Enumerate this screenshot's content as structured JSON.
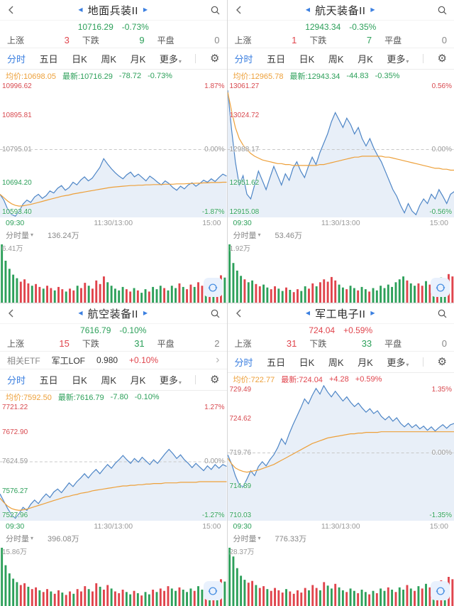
{
  "colors": {
    "up": "#e0444c",
    "down": "#2da05a",
    "line": "#4d85c6",
    "avg": "#eda03a",
    "fill": "rgba(77,133,198,0.13)",
    "accent": "#3b7fe0"
  },
  "icons": {
    "prev_stock": "◀",
    "next_stock": "▶",
    "settings_gear": "⚙",
    "caret_down": "▾",
    "chevron_right": "›"
  },
  "panels": [
    {
      "title": "地面兵装II",
      "price": "10716.29",
      "change_pct": "-0.73%",
      "direction": "down",
      "stats": {
        "up_label": "上涨",
        "up": "3",
        "down_label": "下跌",
        "down": "9",
        "flat_label": "平盘",
        "flat": "0"
      },
      "tabs": [
        "分时",
        "五日",
        "日K",
        "周K",
        "月K",
        "更多"
      ],
      "info": {
        "avg_label": "均价:",
        "avg": "10698.05",
        "last_label": "最新:",
        "last": "10716.29",
        "chg": "-78.72",
        "chg_pct": "-0.73%"
      },
      "y_labels": [
        "10996.62",
        "10895.81",
        "10795.01",
        "10694.20",
        "10593.40"
      ],
      "pct_labels": [
        "1.87%",
        "0.00%",
        "-1.87%"
      ],
      "time_labels": [
        "09:30",
        "11:30/13:00",
        "15:00"
      ],
      "vol_label": "分时量",
      "vol_value": "136.24万",
      "vol_max_label": "6.41万",
      "chart": {
        "type": "line",
        "min": 10593.4,
        "max": 10996.62,
        "series": [
          10662,
          10645,
          10618,
          10602,
          10597,
          10612,
          10633,
          10645,
          10638,
          10654,
          10662,
          10650,
          10658,
          10672,
          10666,
          10680,
          10688,
          10674,
          10682,
          10698,
          10690,
          10704,
          10714,
          10702,
          10710,
          10726,
          10742,
          10768,
          10752,
          10738,
          10726,
          10716,
          10708,
          10720,
          10728,
          10714,
          10722,
          10712,
          10702,
          10716,
          10708,
          10698,
          10690,
          10702,
          10694,
          10682,
          10674,
          10686,
          10678,
          10690,
          10696,
          10686,
          10694,
          10704,
          10698,
          10708,
          10700,
          10712,
          10722,
          10716
        ],
        "avg": [
          10662,
          10652,
          10642,
          10634,
          10629,
          10627,
          10628,
          10630,
          10632,
          10635,
          10638,
          10641,
          10644,
          10647,
          10650,
          10653,
          10656,
          10658,
          10660,
          10663,
          10665,
          10667,
          10669,
          10671,
          10673,
          10675,
          10677,
          10679,
          10681,
          10683,
          10684,
          10685,
          10686,
          10687,
          10688,
          10688,
          10689,
          10689,
          10690,
          10690,
          10691,
          10691,
          10691,
          10692,
          10692,
          10692,
          10693,
          10693,
          10693,
          10694,
          10694,
          10695,
          10695,
          10696,
          10696,
          10697,
          10697,
          10697,
          10698,
          10698
        ],
        "vol": [
          1.0,
          0.72,
          0.58,
          0.48,
          0.42,
          0.36,
          0.4,
          0.33,
          0.29,
          0.32,
          0.27,
          0.24,
          0.29,
          0.25,
          0.21,
          0.27,
          0.23,
          0.19,
          0.24,
          0.21,
          0.29,
          0.25,
          0.34,
          0.29,
          0.24,
          0.38,
          0.32,
          0.45,
          0.35,
          0.29,
          0.24,
          0.21,
          0.27,
          0.23,
          0.19,
          0.25,
          0.21,
          0.17,
          0.23,
          0.19,
          0.27,
          0.23,
          0.29,
          0.25,
          0.21,
          0.29,
          0.25,
          0.33,
          0.27,
          0.23,
          0.31,
          0.27,
          0.35,
          0.29,
          0.37,
          0.33,
          0.41,
          0.37,
          0.47,
          0.43
        ]
      }
    },
    {
      "title": "航天装备II",
      "price": "12943.34",
      "change_pct": "-0.35%",
      "direction": "down",
      "stats": {
        "up_label": "上涨",
        "up": "1",
        "down_label": "下跌",
        "down": "7",
        "flat_label": "平盘",
        "flat": "0"
      },
      "tabs": [
        "分时",
        "五日",
        "日K",
        "周K",
        "月K",
        "更多"
      ],
      "info": {
        "avg_label": "均价:",
        "avg": "12965.78",
        "last_label": "最新:",
        "last": "12943.34",
        "chg": "-44.83",
        "chg_pct": "-0.35%"
      },
      "y_labels": [
        "13061.27",
        "13024.72",
        "12988.17",
        "12951.62",
        "12915.08"
      ],
      "pct_labels": [
        "0.56%",
        "0.00%",
        "-0.56%"
      ],
      "time_labels": [
        "09:30",
        "11:30/13:00",
        "15:00"
      ],
      "vol_label": "分时量",
      "vol_value": "53.46万",
      "vol_max_label": "1.92万",
      "chart": {
        "type": "line",
        "min": 12915.08,
        "max": 13061.27,
        "series": [
          13052,
          13010,
          12975,
          12950,
          12960,
          12940,
          12935,
          12950,
          12965,
          12955,
          12945,
          12958,
          12970,
          12960,
          12950,
          12962,
          12955,
          12968,
          12975,
          12965,
          12958,
          12970,
          12980,
          12972,
          12985,
          12995,
          13005,
          13018,
          13028,
          13020,
          13012,
          13022,
          13015,
          13005,
          13012,
          13000,
          12992,
          13000,
          12990,
          12982,
          12975,
          12965,
          12955,
          12945,
          12938,
          12928,
          12920,
          12930,
          12922,
          12918,
          12928,
          12935,
          12930,
          12940,
          12935,
          12945,
          12938,
          12930,
          12940,
          12943
        ],
        "avg": [
          13050,
          13030,
          13012,
          13000,
          12993,
          12988,
          12984,
          12981,
          12979,
          12977,
          12976,
          12975,
          12974,
          12973,
          12973,
          12972,
          12972,
          12971,
          12971,
          12971,
          12971,
          12971,
          12971,
          12971,
          12972,
          12972,
          12973,
          12974,
          12975,
          12976,
          12977,
          12978,
          12979,
          12980,
          12980,
          12981,
          12981,
          12981,
          12981,
          12981,
          12981,
          12980,
          12980,
          12979,
          12978,
          12977,
          12976,
          12975,
          12974,
          12973,
          12972,
          12971,
          12970,
          12969,
          12968,
          12968,
          12967,
          12967,
          12966,
          12966
        ],
        "vol": [
          1.0,
          0.68,
          0.55,
          0.46,
          0.4,
          0.35,
          0.38,
          0.32,
          0.28,
          0.31,
          0.26,
          0.23,
          0.28,
          0.24,
          0.2,
          0.26,
          0.22,
          0.18,
          0.23,
          0.2,
          0.28,
          0.24,
          0.33,
          0.28,
          0.35,
          0.4,
          0.36,
          0.44,
          0.38,
          0.31,
          0.26,
          0.23,
          0.29,
          0.25,
          0.21,
          0.27,
          0.23,
          0.19,
          0.25,
          0.21,
          0.29,
          0.25,
          0.31,
          0.27,
          0.35,
          0.4,
          0.45,
          0.38,
          0.33,
          0.29,
          0.33,
          0.29,
          0.37,
          0.31,
          0.39,
          0.35,
          0.43,
          0.39,
          0.49,
          0.45
        ]
      }
    },
    {
      "title": "航空装备II",
      "price": "7616.79",
      "change_pct": "-0.10%",
      "direction": "down",
      "stats": {
        "up_label": "上涨",
        "up": "15",
        "down_label": "下跌",
        "down": "31",
        "flat_label": "平盘",
        "flat": "2"
      },
      "etf": {
        "label": "相关ETF",
        "name": "军工LOF",
        "price": "0.980",
        "pct": "+0.10%"
      },
      "tabs": [
        "分时",
        "五日",
        "日K",
        "周K",
        "月K",
        "更多"
      ],
      "info": {
        "avg_label": "均价:",
        "avg": "7592.50",
        "last_label": "最新:",
        "last": "7616.79",
        "chg": "-7.80",
        "chg_pct": "-0.10%"
      },
      "y_labels": [
        "7721.22",
        "7672.90",
        "7624.59",
        "7576.27",
        "7527.96"
      ],
      "pct_labels": [
        "1.27%",
        "0.00%",
        "-1.27%"
      ],
      "time_labels": [
        "09:30",
        "11:30/13:00",
        "15:00"
      ],
      "vol_label": "分时量",
      "vol_value": "396.08万",
      "vol_max_label": "15.86万",
      "chart": {
        "type": "line",
        "min": 7527.96,
        "max": 7721.22,
        "series": [
          7572,
          7560,
          7548,
          7538,
          7532,
          7540,
          7550,
          7545,
          7555,
          7562,
          7556,
          7565,
          7572,
          7566,
          7575,
          7580,
          7574,
          7582,
          7590,
          7584,
          7592,
          7598,
          7605,
          7598,
          7606,
          7612,
          7605,
          7613,
          7620,
          7614,
          7622,
          7628,
          7635,
          7628,
          7622,
          7630,
          7624,
          7632,
          7626,
          7620,
          7628,
          7622,
          7630,
          7638,
          7645,
          7638,
          7630,
          7636,
          7628,
          7622,
          7615,
          7622,
          7616,
          7610,
          7618,
          7612,
          7620,
          7614,
          7620,
          7617
        ],
        "avg": [
          7565,
          7558,
          7552,
          7548,
          7546,
          7545,
          7546,
          7547,
          7549,
          7551,
          7553,
          7555,
          7557,
          7559,
          7561,
          7563,
          7565,
          7567,
          7568,
          7570,
          7571,
          7573,
          7574,
          7575,
          7577,
          7578,
          7579,
          7580,
          7581,
          7582,
          7583,
          7584,
          7585,
          7585,
          7586,
          7586,
          7587,
          7587,
          7588,
          7588,
          7589,
          7589,
          7589,
          7590,
          7590,
          7590,
          7590,
          7591,
          7591,
          7591,
          7591,
          7591,
          7592,
          7592,
          7592,
          7592,
          7592,
          7592,
          7592,
          7592
        ],
        "vol": [
          1.0,
          0.7,
          0.56,
          0.47,
          0.41,
          0.36,
          0.39,
          0.33,
          0.29,
          0.32,
          0.27,
          0.24,
          0.29,
          0.25,
          0.21,
          0.27,
          0.23,
          0.19,
          0.25,
          0.21,
          0.29,
          0.25,
          0.34,
          0.29,
          0.25,
          0.39,
          0.33,
          0.28,
          0.36,
          0.3,
          0.25,
          0.22,
          0.28,
          0.24,
          0.2,
          0.26,
          0.22,
          0.18,
          0.24,
          0.2,
          0.28,
          0.24,
          0.3,
          0.26,
          0.34,
          0.3,
          0.26,
          0.32,
          0.28,
          0.24,
          0.3,
          0.26,
          0.34,
          0.28,
          0.36,
          0.32,
          0.4,
          0.36,
          0.46,
          0.42
        ]
      }
    },
    {
      "title": "军工电子II",
      "price": "724.04",
      "change_pct": "+0.59%",
      "direction": "up",
      "stats": {
        "up_label": "上涨",
        "up": "31",
        "down_label": "下跌",
        "down": "33",
        "flat_label": "平盘",
        "flat": "0"
      },
      "tabs": [
        "分时",
        "五日",
        "日K",
        "周K",
        "月K",
        "更多"
      ],
      "info": {
        "avg_label": "均价:",
        "avg": "722.77",
        "last_label": "最新:",
        "last": "724.04",
        "chg": "+4.28",
        "chg_pct": "+0.59%"
      },
      "y_labels": [
        "729.49",
        "724.62",
        "719.76",
        "714.89",
        "710.03"
      ],
      "pct_labels": [
        "1.35%",
        "0.00%",
        "-1.35%"
      ],
      "time_labels": [
        "09:30",
        "11:30/13:00",
        "15:00"
      ],
      "vol_label": "分时量",
      "vol_value": "776.33万",
      "vol_max_label": "28.37万",
      "chart": {
        "type": "line",
        "min": 710.03,
        "max": 729.49,
        "series": [
          719.5,
          718.2,
          716.5,
          715.2,
          714.9,
          716.0,
          717.2,
          716.5,
          717.8,
          718.5,
          717.9,
          718.8,
          719.5,
          720.5,
          721.8,
          721.0,
          722.5,
          723.8,
          725.0,
          726.2,
          727.5,
          726.8,
          728.0,
          729.0,
          728.2,
          729.4,
          728.5,
          727.8,
          728.6,
          727.9,
          727.2,
          727.8,
          727.0,
          726.4,
          726.9,
          726.2,
          725.6,
          726.1,
          725.4,
          725.8,
          725.0,
          724.5,
          725.0,
          724.3,
          724.8,
          724.0,
          723.5,
          724.0,
          723.4,
          723.8,
          723.2,
          723.6,
          723.0,
          723.5,
          722.9,
          723.4,
          723.8,
          723.3,
          723.8,
          724.0
        ],
        "avg": [
          719.0,
          718.2,
          717.6,
          717.3,
          717.1,
          717.0,
          717.1,
          717.2,
          717.3,
          717.5,
          717.7,
          717.9,
          718.1,
          718.4,
          718.7,
          719.0,
          719.3,
          719.6,
          719.9,
          720.2,
          720.5,
          720.8,
          721.1,
          721.3,
          721.5,
          721.7,
          721.9,
          722.0,
          722.1,
          722.2,
          722.3,
          722.4,
          722.5,
          722.5,
          722.6,
          722.6,
          722.7,
          722.7,
          722.7,
          722.7,
          722.8,
          722.8,
          722.8,
          722.8,
          722.8,
          722.8,
          722.8,
          722.8,
          722.8,
          722.8,
          722.8,
          722.8,
          722.8,
          722.8,
          722.8,
          722.8,
          722.8,
          722.8,
          722.8,
          722.8
        ],
        "vol": [
          1.0,
          0.85,
          0.65,
          0.52,
          0.45,
          0.4,
          0.43,
          0.36,
          0.31,
          0.34,
          0.29,
          0.26,
          0.31,
          0.27,
          0.23,
          0.29,
          0.25,
          0.21,
          0.27,
          0.23,
          0.31,
          0.27,
          0.36,
          0.31,
          0.27,
          0.41,
          0.35,
          0.3,
          0.38,
          0.32,
          0.27,
          0.24,
          0.3,
          0.26,
          0.22,
          0.28,
          0.24,
          0.2,
          0.26,
          0.22,
          0.3,
          0.26,
          0.32,
          0.28,
          0.24,
          0.32,
          0.28,
          0.36,
          0.3,
          0.26,
          0.34,
          0.3,
          0.38,
          0.32,
          0.4,
          0.36,
          0.44,
          0.4,
          0.5,
          0.46
        ]
      }
    }
  ]
}
